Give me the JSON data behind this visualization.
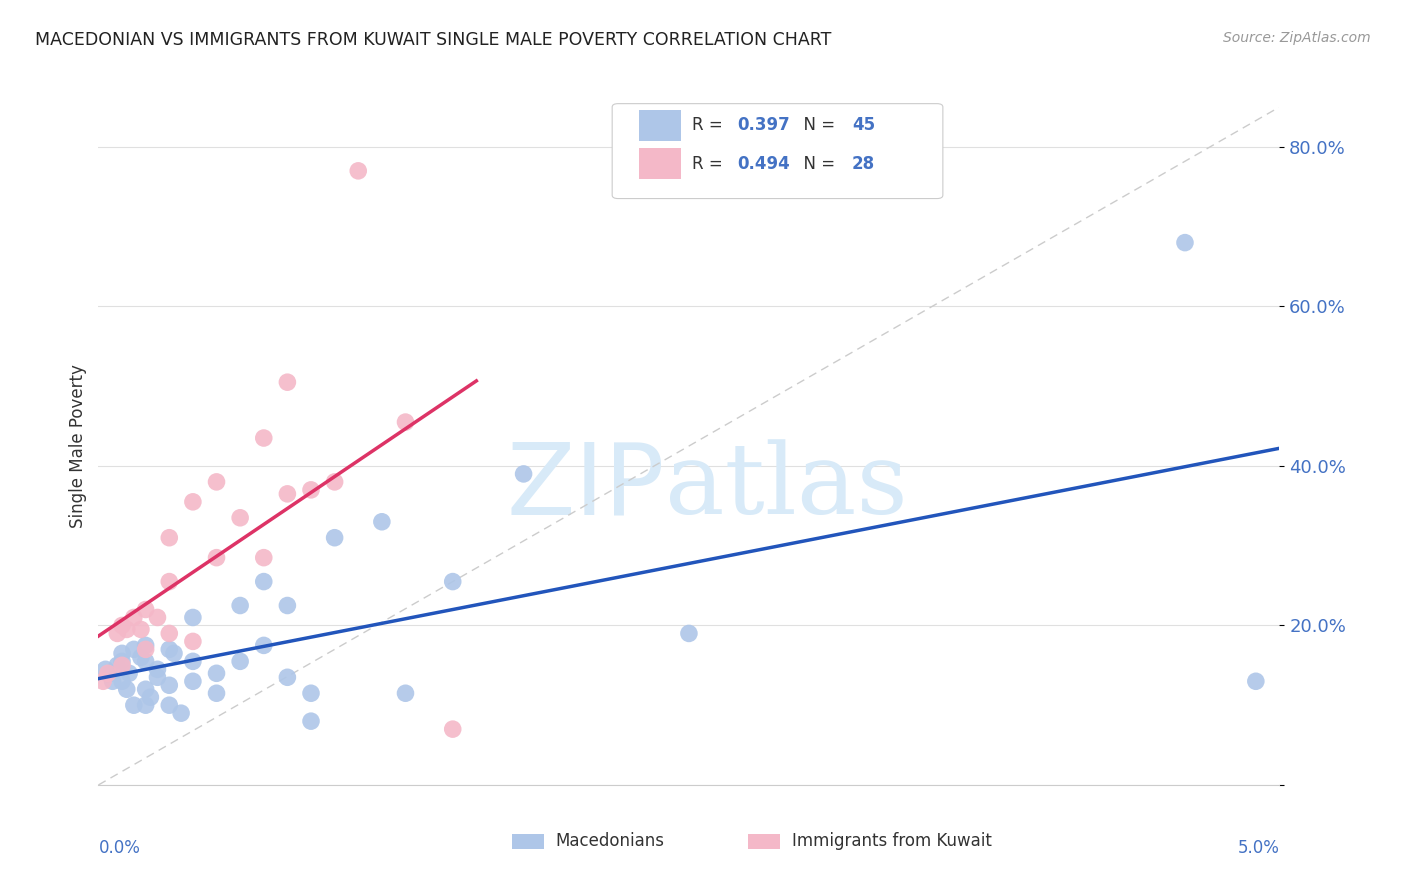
{
  "title": "MACEDONIAN VS IMMIGRANTS FROM KUWAIT SINGLE MALE POVERTY CORRELATION CHART",
  "source": "Source: ZipAtlas.com",
  "ylabel": "Single Male Poverty",
  "xlim": [
    0.0,
    0.05
  ],
  "ylim": [
    0.0,
    0.85
  ],
  "legend_r1": "0.397",
  "legend_n1": "45",
  "legend_r2": "0.494",
  "legend_n2": "28",
  "macedonians_color": "#aec6e8",
  "kuwait_color": "#f4b8c8",
  "trend_blue": "#2255bb",
  "trend_pink": "#dd3366",
  "diagonal_color": "#cccccc",
  "macedonians_x": [
    0.0003,
    0.0005,
    0.0006,
    0.0008,
    0.001,
    0.001,
    0.001,
    0.0012,
    0.0013,
    0.0015,
    0.0015,
    0.0018,
    0.002,
    0.002,
    0.002,
    0.002,
    0.0022,
    0.0025,
    0.0025,
    0.003,
    0.003,
    0.003,
    0.0032,
    0.0035,
    0.004,
    0.004,
    0.004,
    0.005,
    0.005,
    0.006,
    0.006,
    0.007,
    0.007,
    0.008,
    0.008,
    0.009,
    0.009,
    0.01,
    0.012,
    0.013,
    0.015,
    0.018,
    0.025,
    0.046,
    0.049
  ],
  "macedonians_y": [
    0.145,
    0.14,
    0.13,
    0.15,
    0.13,
    0.155,
    0.165,
    0.12,
    0.14,
    0.1,
    0.17,
    0.16,
    0.1,
    0.12,
    0.155,
    0.175,
    0.11,
    0.135,
    0.145,
    0.1,
    0.125,
    0.17,
    0.165,
    0.09,
    0.13,
    0.155,
    0.21,
    0.14,
    0.115,
    0.155,
    0.225,
    0.175,
    0.255,
    0.135,
    0.225,
    0.08,
    0.115,
    0.31,
    0.33,
    0.115,
    0.255,
    0.39,
    0.19,
    0.68,
    0.13
  ],
  "kuwait_x": [
    0.0002,
    0.0004,
    0.0008,
    0.001,
    0.001,
    0.0012,
    0.0015,
    0.0018,
    0.002,
    0.002,
    0.0025,
    0.003,
    0.003,
    0.003,
    0.004,
    0.004,
    0.005,
    0.005,
    0.006,
    0.007,
    0.007,
    0.008,
    0.008,
    0.009,
    0.01,
    0.011,
    0.013,
    0.015
  ],
  "kuwait_y": [
    0.13,
    0.14,
    0.19,
    0.15,
    0.2,
    0.195,
    0.21,
    0.195,
    0.17,
    0.22,
    0.21,
    0.19,
    0.255,
    0.31,
    0.18,
    0.355,
    0.38,
    0.285,
    0.335,
    0.285,
    0.435,
    0.365,
    0.505,
    0.37,
    0.38,
    0.77,
    0.455,
    0.07
  ],
  "background_color": "#ffffff",
  "grid_color": "#e0e0e0",
  "tick_color": "#4472c4",
  "label_color": "#333333",
  "watermark_text": "ZIPatlas",
  "watermark_color": "#d8eaf8"
}
